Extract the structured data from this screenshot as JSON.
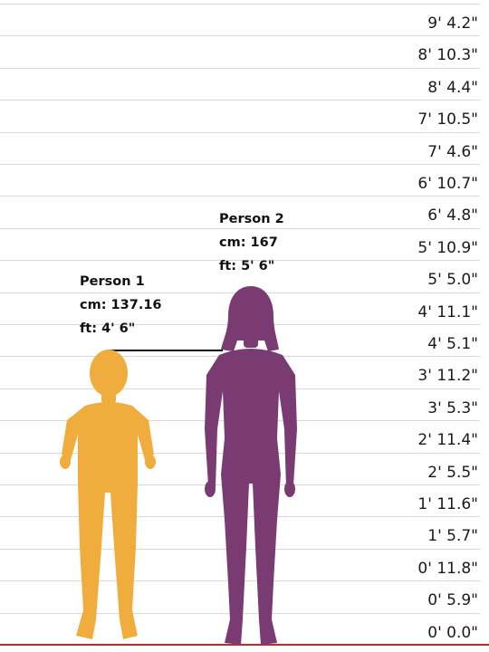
{
  "ruler": {
    "ticks": [
      "9' 4.2\"",
      "8' 10.3\"",
      "8' 4.4\"",
      "7' 10.5\"",
      "7' 4.6\"",
      "6' 10.7\"",
      "6' 4.8\"",
      "5' 10.9\"",
      "5' 5.0\"",
      "4' 11.1\"",
      "4' 5.1\"",
      "3' 11.2\"",
      "3' 5.3\"",
      "2' 11.4\"",
      "2' 5.5\"",
      "1' 11.6\"",
      "1' 5.7\"",
      "0' 11.8\"",
      "0' 5.9\"",
      "0' 0.0\""
    ]
  },
  "people": [
    {
      "name": "Person 1",
      "cm": "cm: 137.16",
      "ft": "ft: 4' 6\"",
      "height_cm": 137.16,
      "color": "#f0ad3e",
      "figure": "child-silhouette"
    },
    {
      "name": "Person 2",
      "cm": "cm: 167",
      "ft": "ft: 5' 6\"",
      "height_cm": 167,
      "color": "#7a3b73",
      "figure": "woman-silhouette"
    }
  ],
  "colors": {
    "grid": "#d9d9d9",
    "baseline": "#c62828",
    "text": "#1a1a1a"
  }
}
